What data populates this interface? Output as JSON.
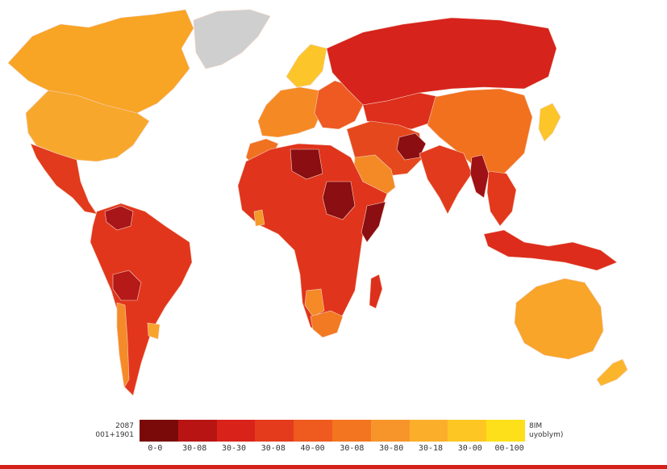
{
  "legend": {
    "left_line1": "2087",
    "left_line2": "001+1901",
    "right_line1": "8IM",
    "right_line2": "uyoblym)",
    "colors": [
      "#7a0a0a",
      "#b81414",
      "#d9231a",
      "#e43b1c",
      "#ef5a1f",
      "#f4751f",
      "#f7952a",
      "#fbae2a",
      "#fdc623",
      "#fde01a"
    ],
    "ticks": [
      "0-0",
      "30-08",
      "30-30",
      "30-08",
      "40-00",
      "30-08",
      "30-80",
      "30-18",
      "30-00",
      "00-100"
    ]
  },
  "map": {
    "colors": {
      "ocean": "#ffffff",
      "greenland": "#cfcfcf",
      "canada": "#f8a424",
      "usa": "#f7a82c",
      "mexico_ca": "#e23a1c",
      "south_america": "#e2361c",
      "venezuela": "#a8161a",
      "bolivia": "#b51a18",
      "chile": "#f58b28",
      "uruguay": "#f8a42c",
      "europe_west": "#f58a24",
      "scandinavia": "#fcc52a",
      "europe_east": "#ee5a22",
      "russia": "#d6231c",
      "kazakh": "#dd2f1c",
      "china": "#f2711f",
      "india": "#e23a1c",
      "mideast": "#e6481e",
      "saudi": "#f48a26",
      "afghan": "#8a0e12",
      "myanmar": "#9e1216",
      "se_asia": "#e2381c",
      "japan": "#fcc52a",
      "indonesia": "#dd2c1c",
      "australia": "#f8a52a",
      "nz": "#fbb52c",
      "africa": "#e0341c",
      "libya": "#8a0e12",
      "sudan": "#8a0e12",
      "somalia": "#8a0e12",
      "namibia": "#f68a26",
      "south_africa": "#f27a22",
      "madagascar": "#dd301c",
      "ghana": "#f39a2a",
      "morocco": "#f07220"
    }
  }
}
